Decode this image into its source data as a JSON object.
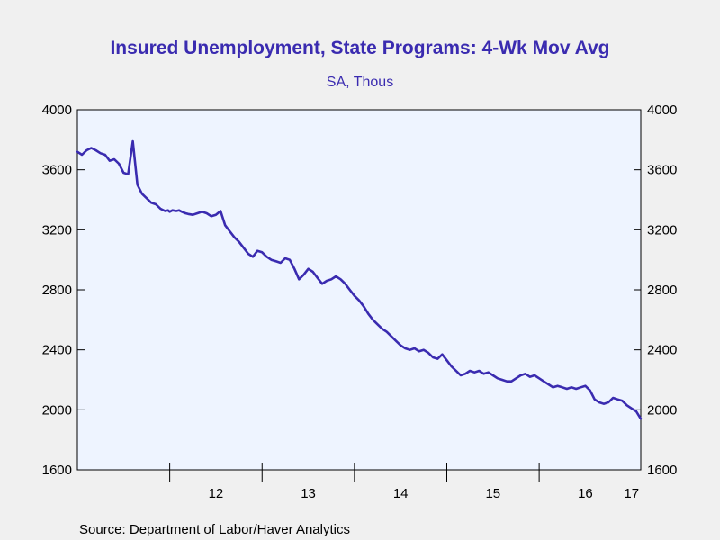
{
  "chart_data": {
    "type": "line",
    "title": "Insured Unemployment, State Programs: 4-Wk Mov Avg",
    "subtitle": "SA, Thous",
    "source": "Source:  Department of Labor/Haver Analytics",
    "ylim": [
      1600,
      4000
    ],
    "yticks": [
      "4000",
      "3600",
      "3200",
      "2800",
      "2400",
      "2000",
      "1600"
    ],
    "ytick_values": [
      4000,
      3600,
      3200,
      2800,
      2400,
      2000,
      1600
    ],
    "xlim": [
      2011.0,
      2017.1
    ],
    "xticks": [
      "12",
      "13",
      "14",
      "15",
      "16",
      "17"
    ],
    "xtick_values": [
      2012.5,
      2013.5,
      2014.5,
      2015.5,
      2016.5,
      2017.0
    ],
    "year_boundaries": [
      2012,
      2013,
      2014,
      2015,
      2016
    ],
    "grid": false,
    "legend": "none",
    "colors": {
      "line": "#3a2bb0",
      "plot_bg": "#eef4ff",
      "title": "#3a2bb0"
    },
    "series": [
      {
        "x": [
          2011.0,
          2011.05,
          2011.1,
          2011.15,
          2011.2,
          2011.25,
          2011.3,
          2011.35,
          2011.4,
          2011.45,
          2011.5,
          2011.55,
          2011.6,
          2011.65,
          2011.7,
          2011.75,
          2011.8,
          2011.85,
          2011.9,
          2011.95,
          2011.98,
          2012.0,
          2012.03,
          2012.07,
          2012.1,
          2012.13,
          2012.17,
          2012.2,
          2012.25,
          2012.3,
          2012.35,
          2012.4,
          2012.45,
          2012.5,
          2012.55,
          2012.6,
          2012.65,
          2012.7,
          2012.75,
          2012.8,
          2012.85,
          2012.9,
          2012.95,
          2013.0,
          2013.05,
          2013.1,
          2013.15,
          2013.2,
          2013.25,
          2013.3,
          2013.35,
          2013.4,
          2013.45,
          2013.5,
          2013.55,
          2013.6,
          2013.65,
          2013.7,
          2013.75,
          2013.8,
          2013.85,
          2013.9,
          2013.95,
          2014.0,
          2014.05,
          2014.1,
          2014.15,
          2014.2,
          2014.25,
          2014.3,
          2014.35,
          2014.4,
          2014.45,
          2014.5,
          2014.55,
          2014.6,
          2014.65,
          2014.7,
          2014.75,
          2014.8,
          2014.85,
          2014.9,
          2014.95,
          2015.0,
          2015.05,
          2015.1,
          2015.15,
          2015.2,
          2015.25,
          2015.3,
          2015.35,
          2015.4,
          2015.45,
          2015.5,
          2015.55,
          2015.6,
          2015.65,
          2015.7,
          2015.75,
          2015.8,
          2015.85,
          2015.9,
          2015.95,
          2016.0,
          2016.05,
          2016.1,
          2016.15,
          2016.2,
          2016.25,
          2016.3,
          2016.35,
          2016.4,
          2016.45,
          2016.5,
          2016.55,
          2016.6,
          2016.65,
          2016.7,
          2016.75,
          2016.8,
          2016.85,
          2016.9,
          2016.95,
          2017.0,
          2017.05,
          2017.1
        ],
        "values": [
          3720,
          3700,
          3730,
          3745,
          3730,
          3710,
          3700,
          3660,
          3670,
          3640,
          3580,
          3570,
          3790,
          3500,
          3440,
          3410,
          3380,
          3370,
          3340,
          3325,
          3330,
          3320,
          3330,
          3325,
          3330,
          3320,
          3310,
          3305,
          3300,
          3310,
          3320,
          3310,
          3290,
          3300,
          3325,
          3230,
          3190,
          3150,
          3120,
          3080,
          3040,
          3020,
          3060,
          3050,
          3020,
          3000,
          2990,
          2980,
          3010,
          3000,
          2940,
          2870,
          2900,
          2940,
          2920,
          2880,
          2840,
          2860,
          2870,
          2890,
          2870,
          2840,
          2800,
          2760,
          2730,
          2690,
          2640,
          2600,
          2570,
          2540,
          2520,
          2490,
          2460,
          2430,
          2410,
          2400,
          2410,
          2390,
          2400,
          2380,
          2350,
          2340,
          2370,
          2330,
          2290,
          2260,
          2230,
          2240,
          2260,
          2250,
          2260,
          2240,
          2250,
          2230,
          2210,
          2200,
          2190,
          2190,
          2210,
          2230,
          2240,
          2220,
          2230,
          2210,
          2190,
          2170,
          2150,
          2160,
          2150,
          2140,
          2150,
          2140,
          2150,
          2160,
          2130,
          2070,
          2050,
          2040,
          2050,
          2080,
          2070,
          2060,
          2030,
          2010,
          1990,
          1940
        ]
      }
    ]
  }
}
